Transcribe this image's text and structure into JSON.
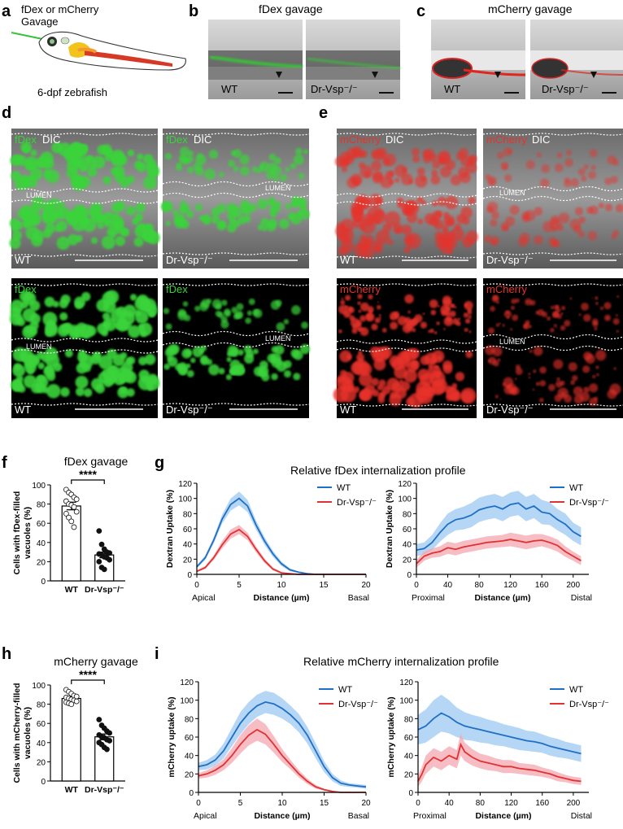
{
  "panel_letters": [
    "a",
    "b",
    "c",
    "d",
    "e",
    "f",
    "g",
    "h",
    "i"
  ],
  "a": {
    "title_line1": "fDex or mCherry",
    "title_line2": "Gavage",
    "caption": "6-dpf zebrafish"
  },
  "b": {
    "title": "fDex gavage",
    "wt": "WT",
    "mut": "Dr-Vsp⁻/⁻"
  },
  "c": {
    "title": "mCherry gavage",
    "wt": "WT",
    "mut": "Dr-Vsp⁻/⁻"
  },
  "d": {
    "stain_top": "fDex",
    "dic": "DIC",
    "stain_bottom": "fDex",
    "lumen": "LUMEN",
    "wt": "WT",
    "mut": "Dr-Vsp⁻/⁻"
  },
  "e": {
    "stain_top": "mCherry",
    "dic": "DIC",
    "stain_bottom": "mCherry",
    "lumen": "LUMEN",
    "wt": "WT",
    "mut": "Dr-Vsp⁻/⁻"
  },
  "colors": {
    "wt": "#1f6fc4",
    "mut": "#e03232",
    "wt_band": "#9cc8f2",
    "mut_band": "#f4a7b0",
    "fdex": "#3ad43a",
    "mcherry": "#e8322b"
  },
  "chart_data": [
    {
      "id": "f",
      "type": "bar",
      "title": "fDex gavage",
      "ylabel": "Cells with fDex-filled vacuoles (%)",
      "categories": [
        "WT",
        "Dr-Vsp⁻/⁻"
      ],
      "values": [
        78,
        27
      ],
      "sem": [
        4,
        3
      ],
      "ylim": [
        0,
        100
      ],
      "yticks": [
        0,
        20,
        40,
        60,
        80,
        100
      ],
      "significance": "****",
      "points": [
        [
          95,
          92,
          90,
          87,
          85,
          83,
          80,
          79,
          77,
          72,
          70,
          66,
          62,
          56
        ],
        [
          52,
          38,
          33,
          30,
          29,
          28,
          27,
          25,
          24,
          22,
          20,
          14,
          12
        ]
      ]
    },
    {
      "id": "g1",
      "type": "area",
      "title": "Relative fDex internalization profile",
      "ylabel": "Dextran Uptake (%)",
      "xlabel": "Distance (µm)",
      "xlim": [
        0,
        20
      ],
      "ylim": [
        0,
        120
      ],
      "xticks": [
        0,
        5,
        10,
        15,
        20
      ],
      "yticks": [
        0,
        20,
        40,
        60,
        80,
        100,
        120
      ],
      "left_end": "Apical",
      "right_end": "Basal",
      "series": [
        {
          "name": "WT",
          "x": [
            0,
            1,
            2,
            3,
            4,
            5,
            6,
            7,
            8,
            9,
            10,
            11,
            12,
            13,
            14,
            15,
            20
          ],
          "values": [
            10,
            22,
            45,
            73,
            92,
            100,
            90,
            65,
            44,
            27,
            14,
            6,
            3,
            1,
            0,
            0,
            0
          ],
          "band": [
            2,
            3,
            4,
            6,
            8,
            9,
            8,
            6,
            5,
            4,
            3,
            2,
            1,
            1,
            0,
            0,
            0
          ]
        },
        {
          "name": "Dr-Vsp⁻/⁻",
          "x": [
            0,
            1,
            2,
            3,
            4,
            5,
            6,
            7,
            8,
            9,
            10,
            11,
            12,
            15,
            20
          ],
          "values": [
            4,
            9,
            22,
            39,
            53,
            59,
            50,
            33,
            18,
            7,
            2,
            1,
            0,
            0,
            0
          ],
          "band": [
            1,
            2,
            3,
            5,
            6,
            6,
            5,
            4,
            3,
            2,
            1,
            0,
            0,
            0,
            0
          ]
        }
      ]
    },
    {
      "id": "g2",
      "type": "area",
      "ylabel": "Dextran Uptake (%)",
      "xlabel": "Distance (µm)",
      "xlim": [
        0,
        220
      ],
      "ylim": [
        0,
        120
      ],
      "xticks": [
        0,
        40,
        80,
        120,
        160,
        200
      ],
      "yticks": [
        0,
        20,
        40,
        60,
        80,
        100,
        120
      ],
      "left_end": "Proximal",
      "right_end": "Distal",
      "series": [
        {
          "name": "WT",
          "x": [
            0,
            10,
            20,
            30,
            40,
            50,
            60,
            70,
            80,
            90,
            100,
            110,
            120,
            130,
            140,
            150,
            160,
            170,
            180,
            190,
            200,
            210
          ],
          "values": [
            32,
            34,
            42,
            55,
            66,
            72,
            74,
            78,
            85,
            88,
            90,
            86,
            92,
            94,
            86,
            90,
            82,
            80,
            72,
            66,
            56,
            50
          ],
          "band": [
            8,
            8,
            10,
            12,
            14,
            14,
            15,
            16,
            16,
            16,
            16,
            16,
            16,
            16,
            16,
            16,
            16,
            15,
            14,
            14,
            12,
            12
          ]
        },
        {
          "name": "Dr-Vsp⁻/⁻",
          "x": [
            0,
            10,
            20,
            30,
            40,
            50,
            60,
            70,
            80,
            90,
            100,
            110,
            120,
            130,
            140,
            150,
            160,
            170,
            180,
            190,
            200,
            210
          ],
          "values": [
            14,
            24,
            28,
            30,
            35,
            33,
            36,
            38,
            40,
            42,
            43,
            44,
            46,
            44,
            42,
            44,
            45,
            42,
            38,
            30,
            24,
            18
          ],
          "band": [
            5,
            6,
            6,
            7,
            8,
            8,
            8,
            8,
            8,
            8,
            8,
            8,
            9,
            9,
            9,
            9,
            8,
            8,
            8,
            7,
            6,
            6
          ]
        }
      ]
    },
    {
      "id": "h",
      "type": "bar",
      "title": "mCherry gavage",
      "ylabel": "Cells with mCherry-filled vacuoles (%)",
      "categories": [
        "WT",
        "Dr-Vsp⁻/⁻"
      ],
      "values": [
        86,
        46
      ],
      "sem": [
        2,
        3
      ],
      "ylim": [
        0,
        100
      ],
      "yticks": [
        0,
        20,
        40,
        60,
        80,
        100
      ],
      "significance": "****",
      "points": [
        [
          95,
          93,
          91,
          89,
          88,
          87,
          86,
          85,
          84,
          83,
          82,
          81,
          80
        ],
        [
          64,
          58,
          55,
          52,
          50,
          48,
          46,
          45,
          43,
          42,
          40,
          38,
          35,
          33
        ]
      ]
    },
    {
      "id": "i1",
      "type": "area",
      "title": "Relative mCherry internalization profile",
      "ylabel": "mCherry uptake (%)",
      "xlabel": "Distance (µm)",
      "xlim": [
        0,
        20
      ],
      "ylim": [
        0,
        120
      ],
      "xticks": [
        0,
        5,
        10,
        15,
        20
      ],
      "yticks": [
        0,
        20,
        40,
        60,
        80,
        100,
        120
      ],
      "left_end": "Apical",
      "right_end": "Basal",
      "series": [
        {
          "name": "WT",
          "x": [
            0,
            1,
            2,
            3,
            4,
            5,
            6,
            7,
            8,
            9,
            10,
            11,
            12,
            13,
            14,
            15,
            16,
            17,
            18,
            19,
            20
          ],
          "values": [
            28,
            30,
            35,
            45,
            60,
            75,
            86,
            94,
            98,
            96,
            91,
            84,
            75,
            62,
            45,
            28,
            16,
            10,
            8,
            7,
            6
          ],
          "band": [
            4,
            5,
            6,
            8,
            10,
            12,
            12,
            12,
            12,
            12,
            11,
            10,
            10,
            9,
            8,
            6,
            4,
            3,
            2,
            2,
            2
          ]
        },
        {
          "name": "Dr-Vsp⁻/⁻",
          "x": [
            0,
            1,
            2,
            3,
            4,
            5,
            6,
            7,
            8,
            9,
            10,
            11,
            12,
            13,
            14,
            15,
            16,
            17,
            18,
            19,
            20
          ],
          "values": [
            18,
            20,
            24,
            30,
            40,
            52,
            62,
            68,
            63,
            52,
            40,
            30,
            20,
            12,
            6,
            3,
            1,
            0,
            0,
            0,
            0
          ],
          "band": [
            3,
            4,
            5,
            6,
            8,
            10,
            11,
            12,
            11,
            9,
            7,
            5,
            4,
            3,
            2,
            1,
            1,
            0,
            0,
            0,
            0
          ]
        }
      ]
    },
    {
      "id": "i2",
      "type": "area",
      "ylabel": "mCherry uptake (%)",
      "xlabel": "Distance (µm)",
      "xlim": [
        0,
        220
      ],
      "ylim": [
        0,
        120
      ],
      "xticks": [
        0,
        40,
        80,
        120,
        160,
        200
      ],
      "yticks": [
        0,
        20,
        40,
        60,
        80,
        100,
        120
      ],
      "left_end": "Proximal",
      "right_end": "Distal",
      "series": [
        {
          "name": "WT",
          "x": [
            0,
            10,
            20,
            30,
            40,
            50,
            60,
            70,
            80,
            90,
            100,
            110,
            120,
            130,
            140,
            150,
            160,
            170,
            180,
            190,
            200,
            210
          ],
          "values": [
            68,
            72,
            80,
            86,
            82,
            76,
            72,
            70,
            68,
            66,
            64,
            62,
            60,
            58,
            56,
            55,
            53,
            50,
            48,
            46,
            44,
            42
          ],
          "band": [
            16,
            18,
            20,
            20,
            18,
            16,
            15,
            14,
            14,
            13,
            13,
            12,
            12,
            12,
            11,
            11,
            10,
            10,
            10,
            9,
            9,
            9
          ]
        },
        {
          "name": "Dr-Vsp⁻/⁻",
          "x": [
            0,
            5,
            10,
            20,
            30,
            40,
            50,
            55,
            60,
            70,
            80,
            90,
            100,
            110,
            120,
            130,
            140,
            150,
            160,
            170,
            180,
            190,
            200,
            210
          ],
          "values": [
            12,
            20,
            30,
            38,
            34,
            40,
            36,
            52,
            44,
            38,
            34,
            32,
            30,
            28,
            28,
            26,
            25,
            24,
            22,
            20,
            17,
            15,
            13,
            12
          ],
          "band": [
            6,
            8,
            10,
            10,
            10,
            10,
            10,
            12,
            10,
            9,
            8,
            8,
            7,
            7,
            7,
            6,
            6,
            6,
            5,
            5,
            5,
            4,
            4,
            4
          ]
        }
      ]
    }
  ]
}
